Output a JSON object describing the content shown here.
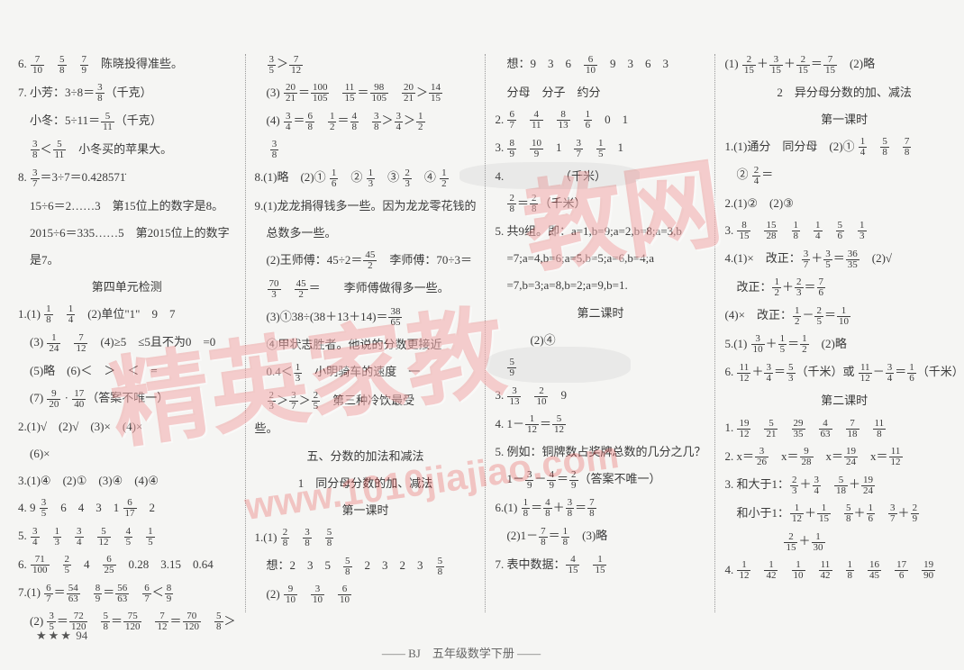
{
  "page_number": "94",
  "footer_text": "BJ　五年级数学下册",
  "stars": "★★★",
  "watermark_text_1": "精英家教",
  "watermark_text_2": "教网",
  "watermark_url": "www.1010jiajiao.com",
  "columns": [
    [
      "6. 7/10　5/8　7/9　陈晓投得准些。",
      "7. 小芳：3÷8＝3/8（千克）",
      "　小冬：5÷11＝5/11（千克）",
      "　3/8＜5/11　小冬买的苹果大。",
      "8. 3/7＝3÷7＝0.428571̇",
      "　15÷6＝2……3　第15位上的数字是8。",
      "　2015÷6＝335……5　第2015位上的数字",
      "　是7。",
      "第四单元检测",
      "1.(1) 1/8　1/4　(2)单位\"1\"　9　7",
      "　(3) 1/24　7/12　(4)≥5　≤5且不为0　=0",
      "　(5)略　(6)＜　＞　＜　=",
      "　(7) 9/20 · 17/40（答案不唯一）",
      "2.(1)√　(2)√　(3)×　(4)×",
      "　(6)×",
      "3.(1)④　(2)①　(3)④　(4)④",
      "4. 9 3/5　6　4　3　1 6/17　2",
      "5. 3/4　1/3　3/4　5/12　4/5　1/5",
      "6. 71/100　2/5　4　6/25　0.28　3.15　0.64",
      "7.(1) 6/7＝54/63　8/9＝56/63　6/7＜8/9",
      "　(2) 3/5＝72/120　5/8＝75/120　7/12＝70/120　5/8＞"
    ],
    [
      "　3/5＞7/12",
      "　(3) 20/21＝100/105　11/15＝98/105　20/21＞14/15",
      "　(4) 3/4＝6/8　1/2＝4/8　3/8＞3/4＞1/2",
      "　 3/8",
      "8.(1)略　(2)① 1/6　② 1/3　③ 2/3　④ 1/2",
      "9.(1)龙龙捐得钱多一些。因为龙龙零花钱的",
      "　总数多一些。",
      "　(2)王师傅：45÷2＝45/2　李师傅：70÷3＝",
      "　70/3　45/2＝　　李师傅做得多一些。",
      "　(3)①38÷(38＋13＋14)＝38/65",
      "　④甲状志胜者。他说的分数更接近",
      "　0.4＜1/3　小明骑车的速度　一",
      "　2/3＞3/7＞2/5　第三种冷饮最受",
      "些。",
      "五、分数的加法和减法",
      "1　同分母分数的加、减法",
      "第一课时",
      "1.(1) 2/8　3/8　5/8",
      "　想：2　3　5　5/8　2　3　2　3　5/8",
      "　(2) 9/10　3/10　6/10"
    ],
    [
      "　想：9　3　6　6/10　9　3　6　3",
      "　分母　分子　约分",
      "2. 6/7　4/11　8/13　1/6　0　1",
      "3. 8/9　10/9　1　3/7　1/5　1",
      "4. 　　　　　（千米）",
      "　2/8＝2/8（千米）",
      "5. 共9组。即：a=1,b=9;a=2,b=8;a=3,b",
      "　=7;a=4,b=6;a=5,b=5;a=6,b=4;a",
      "　=7,b=3;a=8,b=2;a=9,b=1.",
      "第二课时",
      "　　　(2)④",
      "　5/9",
      "3. 3/13　2/10　9",
      "4. 1－1/12＝5/12",
      "5. 例如：铜牌数占奖牌总数的几分之几？",
      "　1－3/9－4/9＝2/9（答案不唯一）",
      "6.(1) 1/8＝4/8＋3/8＝7/8",
      "　(2)1－7/8＝1/8　(3)略",
      "7. 表中数据：4/15　1/15"
    ],
    [
      "(1) 2/15＋3/15＋2/15＝7/15　(2)略",
      "2　异分母分数的加、减法",
      "第一课时",
      "1.(1)通分　同分母　(2)① 1/4　5/8　7/8",
      "　② 2/4＝　　",
      "2.(1)②　(2)③",
      "3. 8/15　15/28　1/8　1/4　5/6　1/3",
      "4.(1)×　改正：3/7＋3/5＝36/35　(2)√",
      "　改正：1/2＋2/3＝7/6",
      "(4)×　改正：1/2－2/5＝1/10",
      "5.(1) 3/10＋1/5＝1/2　(2)略",
      "6. 11/12＋3/4＝5/3（千米）或 11/12－3/4＝1/6（千米）",
      "第二课时",
      "1. 19/12　5/21　29/35　4/63　7/18　11/8",
      "2. x＝3/26　x＝9/28　x＝19/24　x＝11/12",
      "3. 和大于1：2/3＋3/4　5/18＋19/24",
      "　和小于1：1/12＋1/15　5/8＋1/6　3/7＋2/9",
      "　　　　　2/15＋1/30",
      "4. 1/12　1/42　1/10　11/42　1/8　16/45　17/6　19/90"
    ]
  ]
}
